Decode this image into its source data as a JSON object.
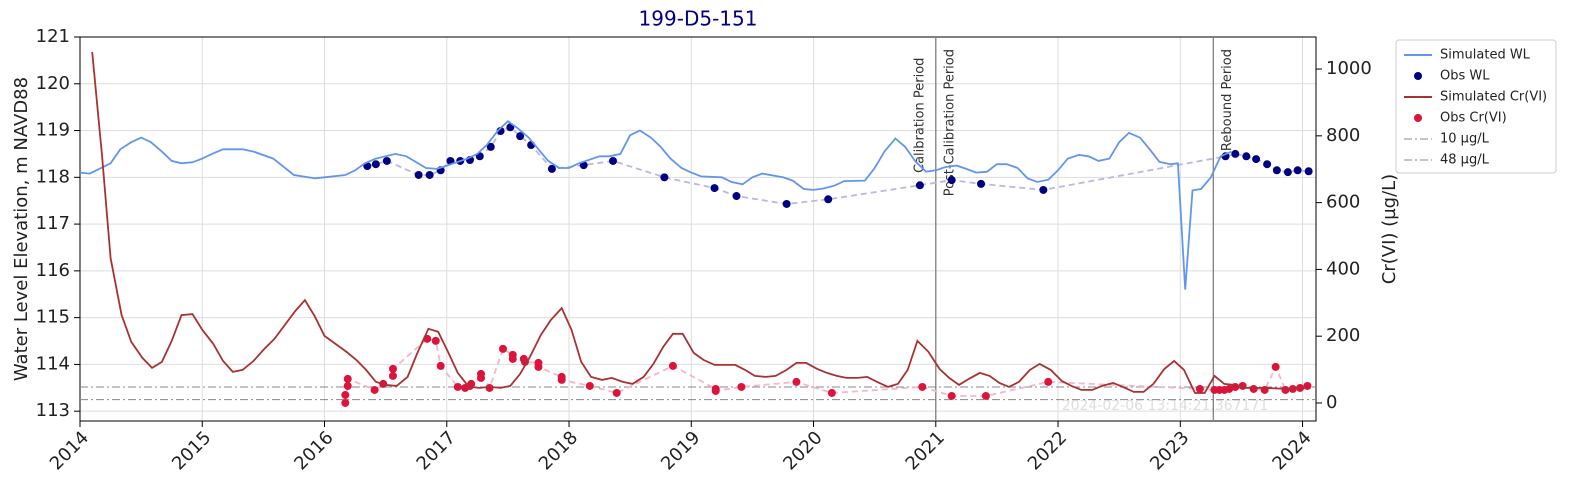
{
  "chart_data": {
    "type": "line",
    "title": "199-D5-151",
    "y_label": "Water Level Elevation, m NAVD88",
    "y2_label": "Cr(VI) (µg/L)",
    "xlim": [
      2014,
      2024.11
    ],
    "xticks": [
      2014,
      2015,
      2016,
      2017,
      2018,
      2019,
      2020,
      2021,
      2022,
      2023,
      2024
    ],
    "ylim": [
      112.79,
      121
    ],
    "yticks": [
      113,
      114,
      115,
      116,
      117,
      118,
      119,
      120,
      121
    ],
    "y2lim": [
      -54,
      1096
    ],
    "y2ticks": [
      0,
      200,
      400,
      600,
      800,
      1000
    ],
    "grid": true,
    "legend": "outside right",
    "series": [
      {
        "name": "Simulated WL",
        "mark": "line",
        "color": "#6495ed",
        "x": [
          2014.0,
          2014.08,
          2014.25,
          2014.33,
          2014.42,
          2014.5,
          2014.58,
          2014.67,
          2014.75,
          2014.83,
          2014.92,
          2015.0,
          2015.08,
          2015.17,
          2015.33,
          2015.42,
          2015.58,
          2015.75,
          2015.92,
          2016.0,
          2016.17,
          2016.25,
          2016.33,
          2016.42,
          2016.58,
          2016.67,
          2016.83,
          2016.92,
          2017.0,
          2017.17,
          2017.25,
          2017.33,
          2017.42,
          2017.5,
          2017.58,
          2017.67,
          2017.75,
          2017.83,
          2017.92,
          2018.0,
          2018.08,
          2018.25,
          2018.33,
          2018.42,
          2018.5,
          2018.58,
          2018.67,
          2018.75,
          2018.83,
          2018.92,
          2019.0,
          2019.08,
          2019.25,
          2019.33,
          2019.42,
          2019.5,
          2019.58,
          2019.75,
          2019.83,
          2019.92,
          2020.0,
          2020.08,
          2020.17,
          2020.25,
          2020.42,
          2020.5,
          2020.58,
          2020.67,
          2020.75,
          2020.83,
          2020.92,
          2021.0,
          2021.08,
          2021.17,
          2021.25,
          2021.33,
          2021.42,
          2021.5,
          2021.58,
          2021.67,
          2021.75,
          2021.83,
          2021.92,
          2022.0,
          2022.08,
          2022.17,
          2022.25,
          2022.33,
          2022.42,
          2022.5,
          2022.58,
          2022.67,
          2022.75,
          2022.83,
          2022.92,
          2022.98,
          2023.04,
          2023.1,
          2023.17,
          2023.25,
          2023.33,
          2023.42
        ],
        "values": [
          118.1,
          118.08,
          118.3,
          118.6,
          118.75,
          118.85,
          118.75,
          118.55,
          118.35,
          118.3,
          118.32,
          118.4,
          118.5,
          118.6,
          118.6,
          118.55,
          118.4,
          118.05,
          117.98,
          118.0,
          118.05,
          118.15,
          118.3,
          118.4,
          118.5,
          118.45,
          118.2,
          118.18,
          118.25,
          118.4,
          118.5,
          118.7,
          119.0,
          119.2,
          119.05,
          118.85,
          118.6,
          118.35,
          118.2,
          118.2,
          118.3,
          118.45,
          118.45,
          118.5,
          118.9,
          119.0,
          118.85,
          118.65,
          118.4,
          118.2,
          118.1,
          118.02,
          118.0,
          117.9,
          117.85,
          118.0,
          118.08,
          118.0,
          117.93,
          117.75,
          117.73,
          117.76,
          117.82,
          117.92,
          117.93,
          118.2,
          118.55,
          118.83,
          118.65,
          118.35,
          118.12,
          118.15,
          118.22,
          118.25,
          118.18,
          118.1,
          118.12,
          118.28,
          118.28,
          118.2,
          117.98,
          117.9,
          117.95,
          118.15,
          118.4,
          118.48,
          118.45,
          118.35,
          118.4,
          118.75,
          118.95,
          118.85,
          118.6,
          118.33,
          118.28,
          118.3,
          115.6,
          117.72,
          117.75,
          118.0,
          118.45,
          118.55
        ]
      },
      {
        "name": "Obs WL",
        "mark": "scatter",
        "color": "#000080",
        "connector_color": "#b8b8e6",
        "x": [
          2016.35,
          2016.42,
          2016.51,
          2016.77,
          2016.86,
          2016.95,
          2017.03,
          2017.11,
          2017.19,
          2017.27,
          2017.36,
          2017.44,
          2017.52,
          2017.6,
          2017.69,
          2017.86,
          2018.12,
          2018.36,
          2018.78,
          2019.19,
          2019.37,
          2019.78,
          2020.12,
          2020.87,
          2021.13,
          2021.37,
          2021.88,
          2023.37,
          2023.45,
          2023.54,
          2023.62,
          2023.71,
          2023.79,
          2023.88,
          2023.96,
          2024.05
        ],
        "values": [
          118.24,
          118.28,
          118.35,
          118.05,
          118.05,
          118.15,
          118.35,
          118.35,
          118.37,
          118.45,
          118.65,
          118.99,
          119.07,
          118.88,
          118.69,
          118.18,
          118.26,
          118.35,
          118.0,
          117.77,
          117.6,
          117.43,
          117.53,
          117.83,
          117.94,
          117.86,
          117.73,
          118.45,
          118.5,
          118.45,
          118.39,
          118.28,
          118.15,
          118.11,
          118.15,
          118.13
        ]
      },
      {
        "name": "Simulated Cr(VI)",
        "mark": "line",
        "axis": "y2",
        "color": "#a83232",
        "x": [
          2014.1,
          2014.18,
          2014.25,
          2014.34,
          2014.42,
          2014.51,
          2014.59,
          2014.67,
          2014.75,
          2014.83,
          2014.92,
          2015.0,
          2015.09,
          2015.17,
          2015.25,
          2015.33,
          2015.42,
          2015.5,
          2015.59,
          2015.67,
          2015.76,
          2015.84,
          2015.92,
          2016.0,
          2016.09,
          2016.18,
          2016.26,
          2016.34,
          2016.42,
          2016.5,
          2016.59,
          2016.68,
          2016.76,
          2016.85,
          2016.93,
          2017.01,
          2017.09,
          2017.18,
          2017.27,
          2017.35,
          2017.44,
          2017.52,
          2017.6,
          2017.68,
          2017.77,
          2017.85,
          2017.94,
          2018.02,
          2018.1,
          2018.18,
          2018.27,
          2018.35,
          2018.44,
          2018.52,
          2018.61,
          2018.69,
          2018.77,
          2018.85,
          2018.93,
          2019.02,
          2019.1,
          2019.19,
          2019.27,
          2019.36,
          2019.44,
          2019.52,
          2019.61,
          2019.69,
          2019.78,
          2019.86,
          2019.94,
          2020.03,
          2020.11,
          2020.19,
          2020.27,
          2020.36,
          2020.44,
          2020.52,
          2020.61,
          2020.69,
          2020.77,
          2020.85,
          2020.94,
          2021.03,
          2021.11,
          2021.19,
          2021.27,
          2021.36,
          2021.44,
          2021.52,
          2021.6,
          2021.68,
          2021.77,
          2021.85,
          2021.94,
          2022.03,
          2022.11,
          2022.19,
          2022.28,
          2022.36,
          2022.45,
          2022.53,
          2022.62,
          2022.7,
          2022.78,
          2022.87,
          2022.95,
          2023.03,
          2023.12,
          2023.2,
          2023.28,
          2023.36,
          2023.44,
          2023.53,
          2023.7,
          2023.86,
          2024.02
        ],
        "values": [
          1051,
          742,
          434,
          263,
          183,
          135,
          105,
          123,
          186,
          263,
          266,
          219,
          177,
          126,
          93,
          99,
          126,
          159,
          192,
          231,
          275,
          308,
          260,
          201,
          177,
          153,
          129,
          99,
          63,
          54,
          51,
          78,
          150,
          222,
          213,
          153,
          90,
          48,
          45,
          48,
          45,
          51,
          87,
          138,
          204,
          248,
          284,
          219,
          123,
          78,
          69,
          75,
          63,
          57,
          78,
          117,
          168,
          207,
          207,
          150,
          129,
          114,
          114,
          114,
          99,
          81,
          78,
          81,
          99,
          120,
          120,
          102,
          90,
          81,
          75,
          75,
          78,
          63,
          48,
          57,
          99,
          186,
          153,
          102,
          75,
          54,
          72,
          90,
          81,
          60,
          48,
          63,
          99,
          117,
          99,
          66,
          51,
          39,
          39,
          51,
          60,
          48,
          33,
          33,
          57,
          102,
          126,
          99,
          30,
          30,
          81,
          57,
          54,
          45,
          45,
          42,
          45
        ]
      },
      {
        "name": "Obs Cr(VI)",
        "mark": "scatter",
        "axis": "y2",
        "color": "#dc143c",
        "connector_color": "#f4b6c8",
        "x": [
          2016.17,
          2016.17,
          2016.19,
          2016.19,
          2016.41,
          2016.48,
          2016.56,
          2016.56,
          2016.84,
          2016.91,
          2016.95,
          2017.09,
          2017.15,
          2017.19,
          2017.2,
          2017.28,
          2017.28,
          2017.35,
          2017.46,
          2017.54,
          2017.54,
          2017.63,
          2017.64,
          2017.75,
          2017.75,
          2017.94,
          2017.94,
          2018.17,
          2018.39,
          2018.85,
          2019.2,
          2019.2,
          2019.41,
          2019.86,
          2020.15,
          2020.89,
          2021.13,
          2021.41,
          2021.92,
          2023.16,
          2023.28,
          2023.32,
          2023.36,
          2023.4,
          2023.45,
          2023.51,
          2023.6,
          2023.69,
          2023.78,
          2023.86,
          2023.92,
          2023.98,
          2024.04
        ],
        "values": [
          24,
          0,
          51,
          72,
          39,
          57,
          81,
          102,
          192,
          186,
          111,
          48,
          45,
          51,
          57,
          75,
          87,
          45,
          162,
          144,
          132,
          132,
          123,
          120,
          108,
          78,
          69,
          51,
          30,
          111,
          42,
          36,
          48,
          63,
          30,
          48,
          21,
          21,
          63,
          42,
          39,
          39,
          39,
          42,
          48,
          51,
          42,
          39,
          108,
          39,
          42,
          45,
          51
        ]
      }
    ],
    "hlines": [
      {
        "name": "10 µg/L",
        "value": 10,
        "axis": "y2",
        "color": "#888888"
      },
      {
        "name": "48 µg/L",
        "value": 48,
        "axis": "y2",
        "color": "#888888"
      }
    ],
    "vlines": [
      {
        "x": 2021.0,
        "left": "Calibration Period",
        "right": "Post-Calibration Period",
        "color": "#808080"
      },
      {
        "x": 2023.27,
        "right": "Rebound Period",
        "color": "#808080"
      }
    ],
    "watermark": "2024-02-06 13:14:21.367171"
  }
}
